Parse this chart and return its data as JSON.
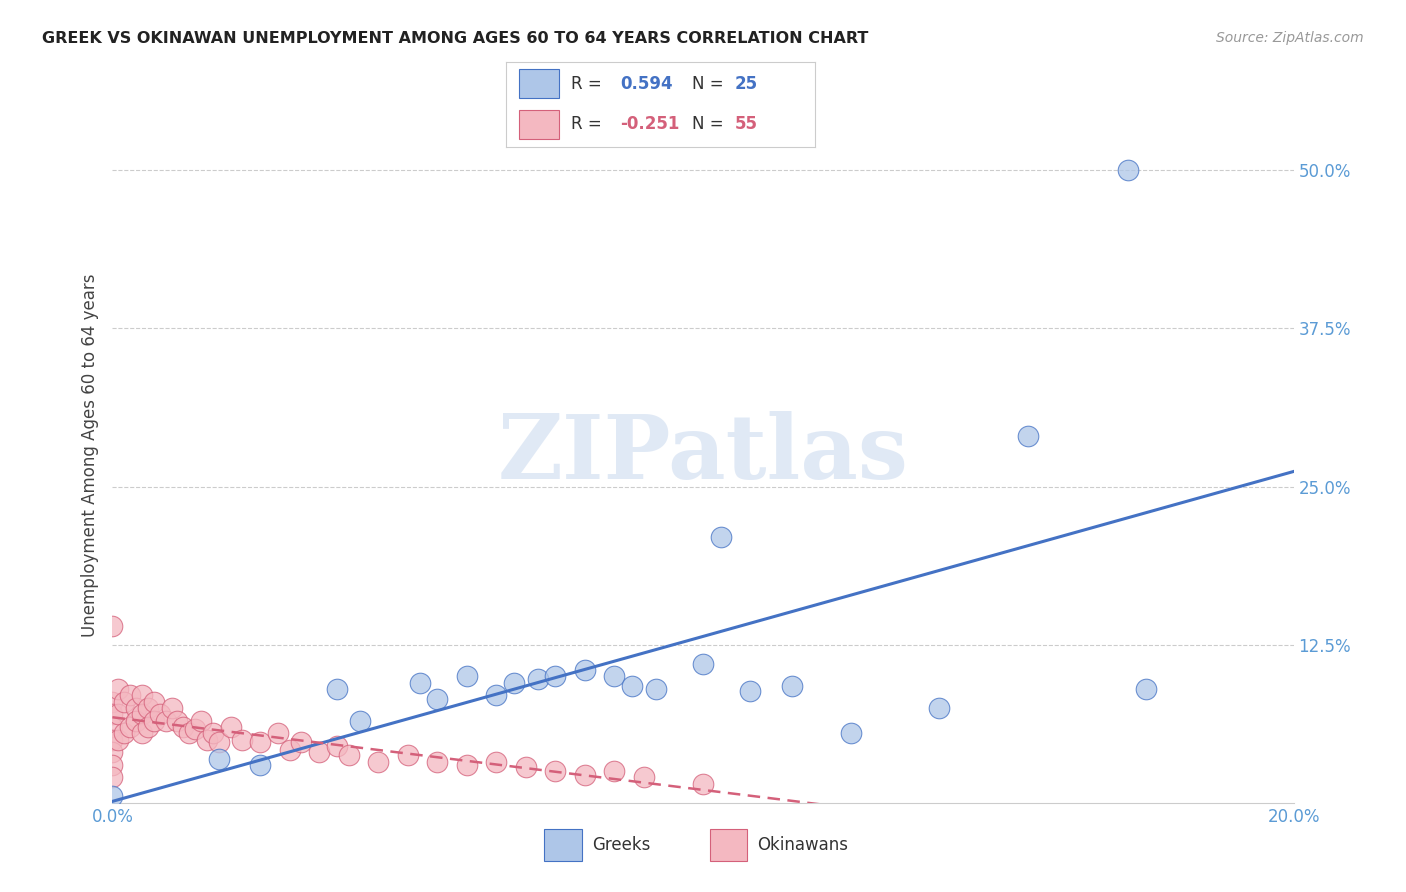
{
  "title": "GREEK VS OKINAWAN UNEMPLOYMENT AMONG AGES 60 TO 64 YEARS CORRELATION CHART",
  "source": "Source: ZipAtlas.com",
  "ylabel": "Unemployment Among Ages 60 to 64 years",
  "xlim": [
    0.0,
    0.2
  ],
  "ylim": [
    0.0,
    0.55
  ],
  "xticks": [
    0.0,
    0.05,
    0.1,
    0.15,
    0.2
  ],
  "xticklabels": [
    "0.0%",
    "",
    "",
    "",
    "20.0%"
  ],
  "ytick_positions": [
    0.0,
    0.125,
    0.25,
    0.375,
    0.5
  ],
  "ytick_labels": [
    "",
    "12.5%",
    "25.0%",
    "37.5%",
    "50.0%"
  ],
  "greek_R": 0.594,
  "greek_N": 25,
  "okinawan_R": -0.251,
  "okinawan_N": 55,
  "greek_color": "#aec6e8",
  "greek_edge_color": "#4472c4",
  "okinawan_color": "#f4b8c1",
  "okinawan_edge_color": "#d4607a",
  "greek_line_color": "#4472c4",
  "okinawan_line_color": "#d4607a",
  "background_color": "#ffffff",
  "grid_color": "#cccccc",
  "greek_x": [
    0.0,
    0.018,
    0.025,
    0.038,
    0.042,
    0.052,
    0.055,
    0.06,
    0.065,
    0.068,
    0.072,
    0.075,
    0.08,
    0.085,
    0.088,
    0.092,
    0.1,
    0.103,
    0.108,
    0.115,
    0.125,
    0.14,
    0.155,
    0.175,
    0.172
  ],
  "greek_y": [
    0.005,
    0.035,
    0.03,
    0.09,
    0.065,
    0.095,
    0.082,
    0.1,
    0.085,
    0.095,
    0.098,
    0.1,
    0.105,
    0.1,
    0.092,
    0.09,
    0.11,
    0.21,
    0.088,
    0.092,
    0.055,
    0.075,
    0.29,
    0.09,
    0.5
  ],
  "okinawan_x": [
    0.0,
    0.0,
    0.0,
    0.0,
    0.0,
    0.0,
    0.0,
    0.0,
    0.001,
    0.001,
    0.001,
    0.002,
    0.002,
    0.003,
    0.003,
    0.004,
    0.004,
    0.005,
    0.005,
    0.005,
    0.006,
    0.006,
    0.007,
    0.007,
    0.008,
    0.009,
    0.01,
    0.011,
    0.012,
    0.013,
    0.014,
    0.015,
    0.016,
    0.017,
    0.018,
    0.02,
    0.022,
    0.025,
    0.028,
    0.03,
    0.032,
    0.035,
    0.038,
    0.04,
    0.045,
    0.05,
    0.055,
    0.06,
    0.065,
    0.07,
    0.075,
    0.08,
    0.085,
    0.09,
    0.1
  ],
  "okinawan_y": [
    0.14,
    0.08,
    0.07,
    0.06,
    0.05,
    0.04,
    0.03,
    0.02,
    0.09,
    0.07,
    0.05,
    0.08,
    0.055,
    0.085,
    0.06,
    0.075,
    0.065,
    0.085,
    0.07,
    0.055,
    0.075,
    0.06,
    0.08,
    0.065,
    0.07,
    0.065,
    0.075,
    0.065,
    0.06,
    0.055,
    0.058,
    0.065,
    0.05,
    0.055,
    0.048,
    0.06,
    0.05,
    0.048,
    0.055,
    0.042,
    0.048,
    0.04,
    0.045,
    0.038,
    0.032,
    0.038,
    0.032,
    0.03,
    0.032,
    0.028,
    0.025,
    0.022,
    0.025,
    0.02,
    0.015
  ],
  "watermark_text": "ZIPatlas",
  "legend_r1_label": "R = ",
  "legend_r1_val": "0.594",
  "legend_n1_label": "N = ",
  "legend_n1_val": "25",
  "legend_r2_val": "-0.251",
  "legend_n2_val": "55",
  "bottom_legend_greek": "Greeks",
  "bottom_legend_okinawan": "Okinawans"
}
